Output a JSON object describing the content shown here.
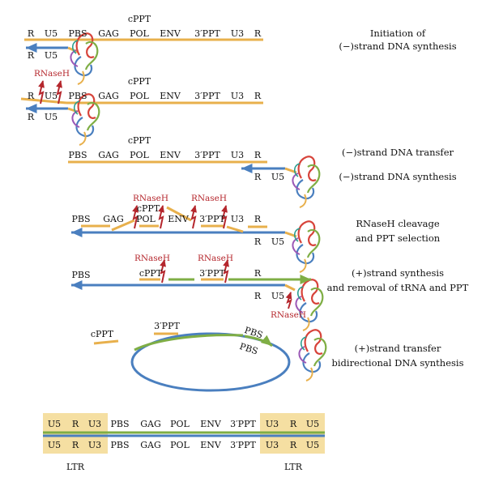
{
  "colors": {
    "rna": "#e8b04c",
    "dna_minus": "#4a7fbf",
    "dna_plus": "#7fae45",
    "rnaseH": "#b5272d",
    "ltr_box": "#f5dfa2",
    "text": "#111111"
  },
  "genome_labels": {
    "R": "R",
    "U5": "U5",
    "PBS": "PBS",
    "GAG": "GAG",
    "cPPT": "cPPT",
    "POL": "POL",
    "ENV": "ENV",
    "PPT3": "3′PPT",
    "U3": "U3",
    "RNaseH": "RNaseH",
    "LTR": "LTR"
  },
  "steps": [
    {
      "line1": "Initiation of",
      "line2": "(−)strand DNA synthesis"
    },
    {
      "line1": "(−)strand DNA transfer"
    },
    {
      "line1": "(−)strand DNA synthesis"
    },
    {
      "line1": "RNaseH cleavage",
      "line2": "and PPT selection"
    },
    {
      "line1": "(+)strand synthesis",
      "line2": "and removal of tRNA and PPT"
    },
    {
      "line1": "(+)strand transfer",
      "line2": "bidirectional DNA synthesis"
    }
  ]
}
